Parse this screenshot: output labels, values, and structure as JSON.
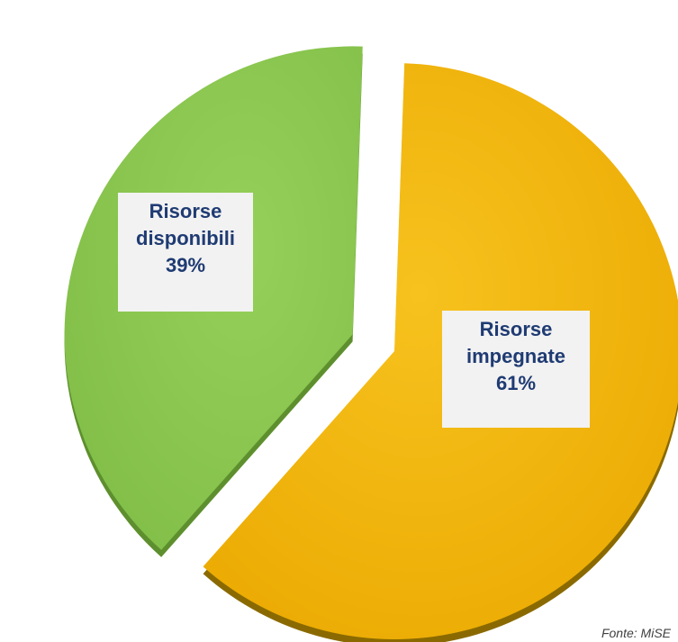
{
  "chart_data": {
    "type": "pie",
    "slices": [
      {
        "label_line1": "Risorse",
        "label_line2": "impegnate",
        "percent_label": "61%",
        "value": 61,
        "color": "#f2b705",
        "shade": "#8a6a00",
        "exploded": false
      },
      {
        "label_line1": "Risorse",
        "label_line2": "disponibili",
        "percent_label": "39%",
        "value": 39,
        "color": "#8cc751",
        "shade": "#5e8f2e",
        "exploded": true
      }
    ],
    "label_color": "#1f3b73",
    "label_box_color": "#f2f2f2"
  },
  "source_note": "Fonte: MiSE"
}
